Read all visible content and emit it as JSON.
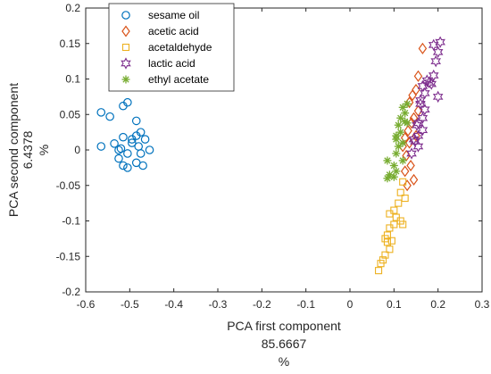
{
  "chart_data": {
    "type": "scatter",
    "title": "",
    "xlabel_lines": [
      "PCA first component",
      "85.6667",
      "%"
    ],
    "ylabel_lines": [
      "PCA second component",
      "6.4378",
      "%"
    ],
    "xlim": [
      -0.6,
      0.3
    ],
    "ylim": [
      -0.2,
      0.2
    ],
    "xticks": [
      -0.6,
      -0.5,
      -0.4,
      -0.3,
      -0.2,
      -0.1,
      0,
      0.1,
      0.2,
      0.3
    ],
    "yticks": [
      -0.2,
      -0.15,
      -0.1,
      -0.05,
      0,
      0.05,
      0.1,
      0.15,
      0.2
    ],
    "xtick_labels": [
      "-0.6",
      "-0.5",
      "-0.4",
      "-0.3",
      "-0.2",
      "-0.1",
      "0",
      "0.1",
      "0.2",
      "0.3"
    ],
    "ytick_labels": [
      "-0.2",
      "-0.15",
      "-0.1",
      "-0.05",
      "0",
      "0.05",
      "0.1",
      "0.15",
      "0.2"
    ],
    "grid": false,
    "legend_position": "top-left",
    "series": [
      {
        "name": "sesame oil",
        "marker": "circle",
        "color": "#0072BD",
        "points": [
          [
            -0.565,
            0.053
          ],
          [
            -0.545,
            0.047
          ],
          [
            -0.515,
            0.062
          ],
          [
            -0.505,
            0.067
          ],
          [
            -0.485,
            0.041
          ],
          [
            -0.565,
            0.005
          ],
          [
            -0.535,
            0.009
          ],
          [
            -0.525,
            0.0
          ],
          [
            -0.515,
            0.018
          ],
          [
            -0.505,
            -0.005
          ],
          [
            -0.495,
            0.01
          ],
          [
            -0.485,
            0.02
          ],
          [
            -0.475,
            0.025
          ],
          [
            -0.475,
            -0.005
          ],
          [
            -0.465,
            0.015
          ],
          [
            -0.455,
            0.0
          ],
          [
            -0.47,
            -0.022
          ],
          [
            -0.485,
            -0.018
          ],
          [
            -0.505,
            -0.025
          ],
          [
            -0.515,
            -0.022
          ],
          [
            -0.525,
            -0.012
          ],
          [
            -0.495,
            0.015
          ],
          [
            -0.48,
            0.005
          ],
          [
            -0.52,
            0.002
          ]
        ]
      },
      {
        "name": "acetic acid",
        "marker": "diamond",
        "color": "#D95319",
        "points": [
          [
            0.165,
            0.143
          ],
          [
            0.155,
            0.104
          ],
          [
            0.15,
            0.085
          ],
          [
            0.142,
            0.077
          ],
          [
            0.135,
            0.067
          ],
          [
            0.155,
            0.055
          ],
          [
            0.145,
            0.045
          ],
          [
            0.14,
            0.038
          ],
          [
            0.132,
            0.027
          ],
          [
            0.125,
            0.017
          ],
          [
            0.135,
            0.01
          ],
          [
            0.12,
            0.005
          ],
          [
            0.128,
            -0.008
          ],
          [
            0.138,
            -0.022
          ],
          [
            0.125,
            -0.03
          ],
          [
            0.13,
            -0.05
          ],
          [
            0.145,
            -0.042
          ],
          [
            0.15,
            0.02
          ]
        ]
      },
      {
        "name": "acetaldehyde",
        "marker": "square",
        "color": "#EDB120",
        "points": [
          [
            0.12,
            -0.045
          ],
          [
            0.115,
            -0.06
          ],
          [
            0.125,
            -0.068
          ],
          [
            0.11,
            -0.075
          ],
          [
            0.1,
            -0.085
          ],
          [
            0.09,
            -0.09
          ],
          [
            0.105,
            -0.095
          ],
          [
            0.115,
            -0.1
          ],
          [
            0.12,
            -0.105
          ],
          [
            0.1,
            -0.105
          ],
          [
            0.09,
            -0.11
          ],
          [
            0.08,
            -0.125
          ],
          [
            0.095,
            -0.128
          ],
          [
            0.085,
            -0.13
          ],
          [
            0.09,
            -0.14
          ],
          [
            0.08,
            -0.148
          ],
          [
            0.075,
            -0.155
          ],
          [
            0.07,
            -0.16
          ],
          [
            0.065,
            -0.17
          ],
          [
            0.085,
            -0.12
          ]
        ]
      },
      {
        "name": "lactic acid",
        "marker": "hexagram",
        "color": "#7E2F8E",
        "points": [
          [
            0.205,
            0.152
          ],
          [
            0.19,
            0.148
          ],
          [
            0.2,
            0.138
          ],
          [
            0.195,
            0.125
          ],
          [
            0.19,
            0.105
          ],
          [
            0.185,
            0.093
          ],
          [
            0.175,
            0.098
          ],
          [
            0.17,
            0.08
          ],
          [
            0.165,
            0.09
          ],
          [
            0.16,
            0.07
          ],
          [
            0.16,
            0.065
          ],
          [
            0.17,
            0.057
          ],
          [
            0.165,
            0.045
          ],
          [
            0.152,
            0.035
          ],
          [
            0.165,
            0.028
          ],
          [
            0.155,
            0.02
          ],
          [
            0.145,
            0.015
          ],
          [
            0.14,
            -0.005
          ],
          [
            0.155,
            0.005
          ],
          [
            0.148,
            0.012
          ],
          [
            0.18,
            0.095
          ],
          [
            0.2,
            0.075
          ],
          [
            0.155,
            0.038
          ]
        ]
      },
      {
        "name": "ethyl acetate",
        "marker": "asterisk",
        "color": "#77AC30",
        "points": [
          [
            0.13,
            0.065
          ],
          [
            0.12,
            0.06
          ],
          [
            0.125,
            0.052
          ],
          [
            0.115,
            0.045
          ],
          [
            0.11,
            0.035
          ],
          [
            0.13,
            0.038
          ],
          [
            0.115,
            0.025
          ],
          [
            0.105,
            0.02
          ],
          [
            0.12,
            0.01
          ],
          [
            0.11,
            0.005
          ],
          [
            0.105,
            -0.005
          ],
          [
            0.12,
            -0.015
          ],
          [
            0.085,
            -0.015
          ],
          [
            0.1,
            -0.022
          ],
          [
            0.105,
            -0.03
          ],
          [
            0.09,
            -0.035
          ],
          [
            0.1,
            -0.038
          ],
          [
            0.085,
            -0.04
          ],
          [
            0.105,
            0.015
          ],
          [
            0.125,
            0.04
          ]
        ]
      }
    ]
  }
}
